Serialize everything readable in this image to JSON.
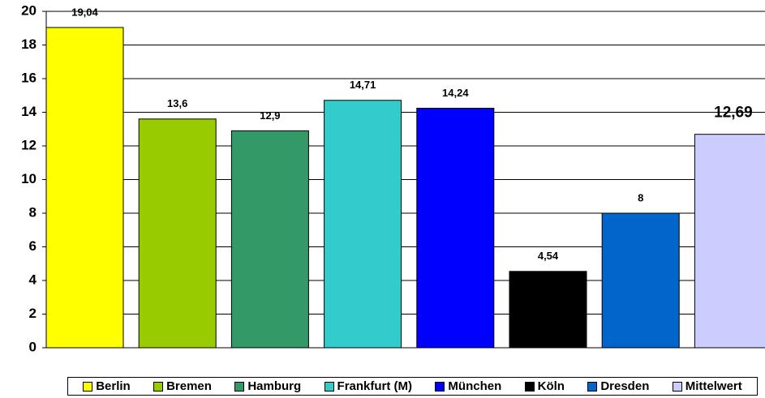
{
  "chart_data": {
    "type": "bar",
    "categories": [
      "Berlin",
      "Bremen",
      "Hamburg",
      "Frankfurt (M)",
      "München",
      "Köln",
      "Dresden",
      "Mittelwert"
    ],
    "values": [
      19.04,
      13.6,
      12.9,
      14.71,
      14.24,
      4.54,
      8,
      12.69
    ],
    "value_labels": [
      "19,04",
      "13,6",
      "12,9",
      "14,71",
      "14,24",
      "4,54",
      "8",
      "12,69"
    ],
    "colors": [
      "#ffff00",
      "#99cc00",
      "#339966",
      "#33cccc",
      "#0000ff",
      "#000000",
      "#0066cc",
      "#ccccff"
    ],
    "ylim": [
      0,
      20
    ],
    "yticks": [
      0,
      2,
      4,
      6,
      8,
      10,
      12,
      14,
      16,
      18,
      20
    ],
    "grid": true,
    "legend": "bottom"
  }
}
